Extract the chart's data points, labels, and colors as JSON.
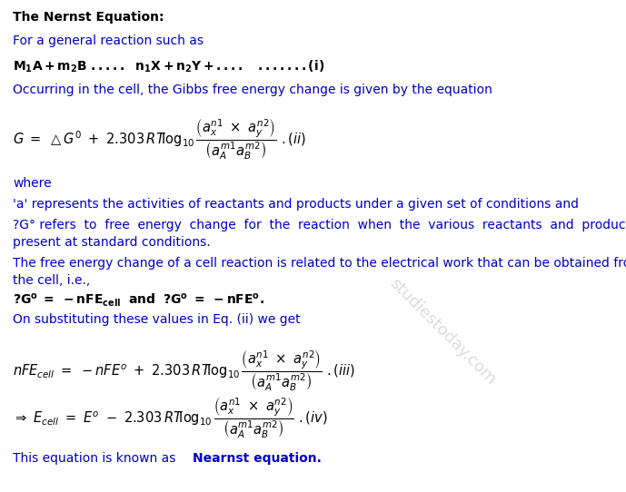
{
  "bg_color": "#ffffff",
  "text_color": "#000000",
  "blue_color": "#0000cd",
  "fig_width": 6.89,
  "fig_height": 5.42,
  "watermark_text": "studiestoday.com",
  "watermark_color": "#b0b0b0",
  "watermark_alpha": 0.45,
  "title_line": "The Nernst Equation:",
  "line2": "For a general reaction such as",
  "line3a": "M",
  "line4": "Occurring in the cell, the Gibbs free energy change is given by the equation",
  "line6": "where",
  "line7": "'a' represents the activities of reactants and products under a given set of conditions and",
  "line8a": "?G° refers  to  free  energy  change  for  the  reaction  when  the  various  reactants  and  products  are",
  "line8b": "present at standard conditions.",
  "line9a": "The free energy change of a cell reaction is related to the electrical work that can be obtained from",
  "line9b": "the cell, i.e.,",
  "line11": "On substituting these values in Eq. (ii) we get",
  "line14a": "This equation is known as ",
  "line14b": "Nearnst equation."
}
